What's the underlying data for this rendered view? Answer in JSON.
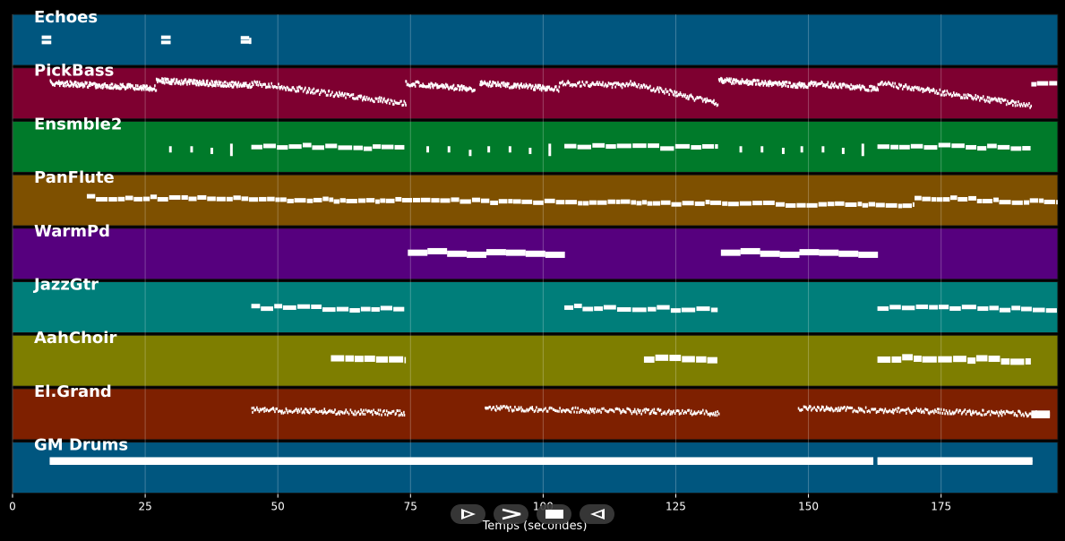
{
  "chart_data": {
    "type": "piano-roll",
    "xlabel": "Temps (secondes)",
    "xlim": [
      0,
      197
    ],
    "xticks": [
      0,
      25,
      50,
      75,
      100,
      125,
      150,
      175
    ],
    "grid": true,
    "tracks": [
      {
        "name": "Echoes",
        "color": "#00567f",
        "notes": [
          [
            5.5,
            7.3,
            0.55
          ],
          [
            5.5,
            7.3,
            0.45
          ],
          [
            28,
            29.8,
            0.55
          ],
          [
            28,
            29.8,
            0.45
          ],
          [
            43,
            45,
            0.54
          ],
          [
            43,
            44.6,
            0.46
          ],
          [
            44.6,
            45,
            0.52
          ]
        ]
      },
      {
        "name": "PickBass",
        "color": "#7e0030",
        "segments": [
          [
            7,
            27,
            0.3,
            0.4,
            0.06
          ],
          [
            27,
            45,
            0.25,
            0.35,
            0.06
          ],
          [
            45,
            74,
            0.3,
            0.7,
            0.1
          ],
          [
            74,
            87,
            0.3,
            0.42,
            0.07
          ],
          [
            88,
            103,
            0.3,
            0.42,
            0.07
          ],
          [
            103,
            116,
            0.3,
            0.35,
            0.1
          ],
          [
            116,
            133,
            0.3,
            0.7,
            0.1
          ],
          [
            133,
            150,
            0.25,
            0.35,
            0.06
          ],
          [
            150,
            163,
            0.3,
            0.42,
            0.07
          ],
          [
            163,
            192,
            0.3,
            0.75,
            0.1
          ],
          [
            192,
            197,
            0.3,
            0.3,
            0.3
          ]
        ]
      },
      {
        "name": "Ensmble2",
        "color": "#007a2a",
        "notes": [
          [
            29.5,
            30,
            0.55
          ],
          [
            33.5,
            34,
            0.55
          ],
          [
            37.3,
            37.8,
            0.58
          ],
          [
            41,
            41.5,
            0.62
          ],
          [
            41,
            41.5,
            0.5
          ],
          [
            78,
            78.5,
            0.55
          ],
          [
            82,
            82.5,
            0.55
          ],
          [
            86,
            86.5,
            0.62
          ],
          [
            89.5,
            90,
            0.55
          ],
          [
            93.5,
            94,
            0.55
          ],
          [
            97.3,
            97.8,
            0.58
          ],
          [
            101,
            101.5,
            0.62
          ],
          [
            101,
            101.5,
            0.5
          ],
          [
            137,
            137.5,
            0.55
          ],
          [
            141,
            141.5,
            0.55
          ],
          [
            145,
            145.5,
            0.58
          ],
          [
            148.5,
            149,
            0.55
          ],
          [
            152.5,
            153,
            0.55
          ],
          [
            156.3,
            156.8,
            0.58
          ],
          [
            160,
            160.5,
            0.62
          ],
          [
            160,
            160.5,
            0.5
          ]
        ],
        "segments": [
          [
            45,
            74,
            0.48,
            0.52,
            0.6
          ],
          [
            104,
            133,
            0.48,
            0.52,
            0.6
          ],
          [
            163,
            192,
            0.48,
            0.52,
            0.6
          ]
        ]
      },
      {
        "name": "PanFlute",
        "color": "#7e5000",
        "segments": [
          [
            14,
            170,
            0.45,
            0.6,
            0.25
          ],
          [
            170,
            197,
            0.45,
            0.55,
            0.25
          ]
        ]
      },
      {
        "name": "WarmPd",
        "color": "#56007e",
        "notes": [
          [
            74.5,
            78.2,
            0.48
          ],
          [
            78.2,
            81.9,
            0.45
          ],
          [
            81.9,
            85.6,
            0.5
          ],
          [
            85.6,
            89.3,
            0.52
          ],
          [
            89.3,
            93,
            0.47
          ],
          [
            93,
            96.7,
            0.48
          ],
          [
            96.7,
            100.4,
            0.5
          ],
          [
            100.4,
            104.1,
            0.52
          ],
          [
            133.5,
            137.2,
            0.48
          ],
          [
            137.2,
            140.9,
            0.45
          ],
          [
            140.9,
            144.6,
            0.5
          ],
          [
            144.6,
            148.3,
            0.52
          ],
          [
            148.3,
            152,
            0.47
          ],
          [
            152,
            155.7,
            0.48
          ],
          [
            155.7,
            159.4,
            0.5
          ],
          [
            159.4,
            163.1,
            0.52
          ]
        ]
      },
      {
        "name": "JazzGtr",
        "color": "#007e7a",
        "segments": [
          [
            45,
            74,
            0.5,
            0.55,
            0.6
          ],
          [
            104,
            133,
            0.5,
            0.55,
            0.6
          ],
          [
            163,
            197,
            0.5,
            0.55,
            0.6
          ]
        ]
      },
      {
        "name": "AahChoir",
        "color": "#7e7e00",
        "segments": [
          [
            60,
            74,
            0.45,
            0.5,
            0.9
          ],
          [
            119,
            133,
            0.45,
            0.5,
            0.9
          ],
          [
            163,
            192,
            0.45,
            0.5,
            0.9
          ]
        ]
      },
      {
        "name": "El.Grand",
        "color": "#7e2000",
        "segments": [
          [
            45,
            74,
            0.42,
            0.48,
            0.12
          ],
          [
            89,
            133,
            0.38,
            0.48,
            0.12
          ],
          [
            148,
            193,
            0.38,
            0.5,
            0.12
          ]
        ],
        "notes": [
          [
            192,
            195.5,
            0.49
          ],
          [
            192,
            195.5,
            0.52
          ]
        ]
      },
      {
        "name": "GM Drums",
        "color": "#00567f",
        "segments": [
          [
            7,
            162,
            0.34,
            0.34,
            0.08
          ],
          [
            7,
            162,
            0.4,
            0.4,
            0.08
          ],
          [
            163,
            192,
            0.34,
            0.34,
            0.08
          ],
          [
            163,
            192,
            0.4,
            0.4,
            0.08
          ]
        ]
      }
    ]
  },
  "controls": [
    {
      "icon": "play-outline-icon"
    },
    {
      "icon": "fast-forward-icon"
    },
    {
      "icon": "stop-icon"
    },
    {
      "icon": "rewind-icon"
    }
  ]
}
